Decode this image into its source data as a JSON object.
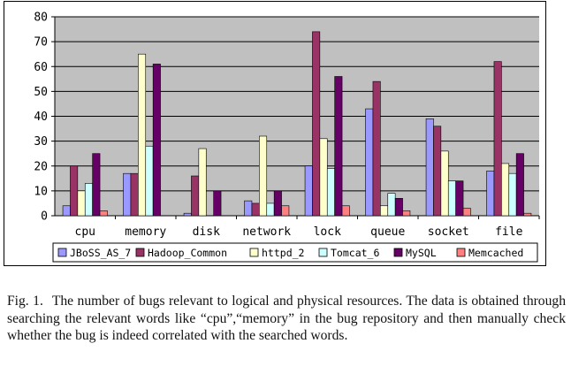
{
  "chart_data": {
    "type": "bar",
    "categories": [
      "cpu",
      "memory",
      "disk",
      "network",
      "lock",
      "queue",
      "socket",
      "file"
    ],
    "series": [
      {
        "name": "JBoSS_AS_7",
        "color": "#9999ff",
        "values": [
          4,
          17,
          1,
          6,
          20,
          43,
          39,
          18
        ]
      },
      {
        "name": "Hadoop_Common",
        "color": "#993366",
        "values": [
          20,
          17,
          16,
          5,
          74,
          54,
          36,
          62
        ]
      },
      {
        "name": "httpd_2",
        "color": "#ffffcc",
        "values": [
          10,
          65,
          27,
          32,
          31,
          4,
          26,
          21
        ]
      },
      {
        "name": "Tomcat_6",
        "color": "#ccffff",
        "values": [
          13,
          28,
          0,
          5,
          19,
          9,
          14,
          17
        ]
      },
      {
        "name": "MySQL",
        "color": "#660066",
        "values": [
          25,
          61,
          10,
          10,
          56,
          7,
          14,
          25
        ]
      },
      {
        "name": "Memcached",
        "color": "#ff8080",
        "values": [
          2,
          0,
          0,
          4,
          4,
          2,
          3,
          1
        ]
      }
    ],
    "ylim": [
      0,
      80
    ],
    "yticks": [
      0,
      10,
      20,
      30,
      40,
      50,
      60,
      70,
      80
    ],
    "grid": true,
    "legend_position": "bottom",
    "plot_background": "#c0c0c0"
  },
  "caption": {
    "label": "Fig. 1.",
    "text": "The number of bugs relevant to logical and physical resources. The data is obtained through searching the relevant words like “cpu”,“memory” in the bug repository and then manually check whether the bug is indeed correlated with the searched words."
  }
}
